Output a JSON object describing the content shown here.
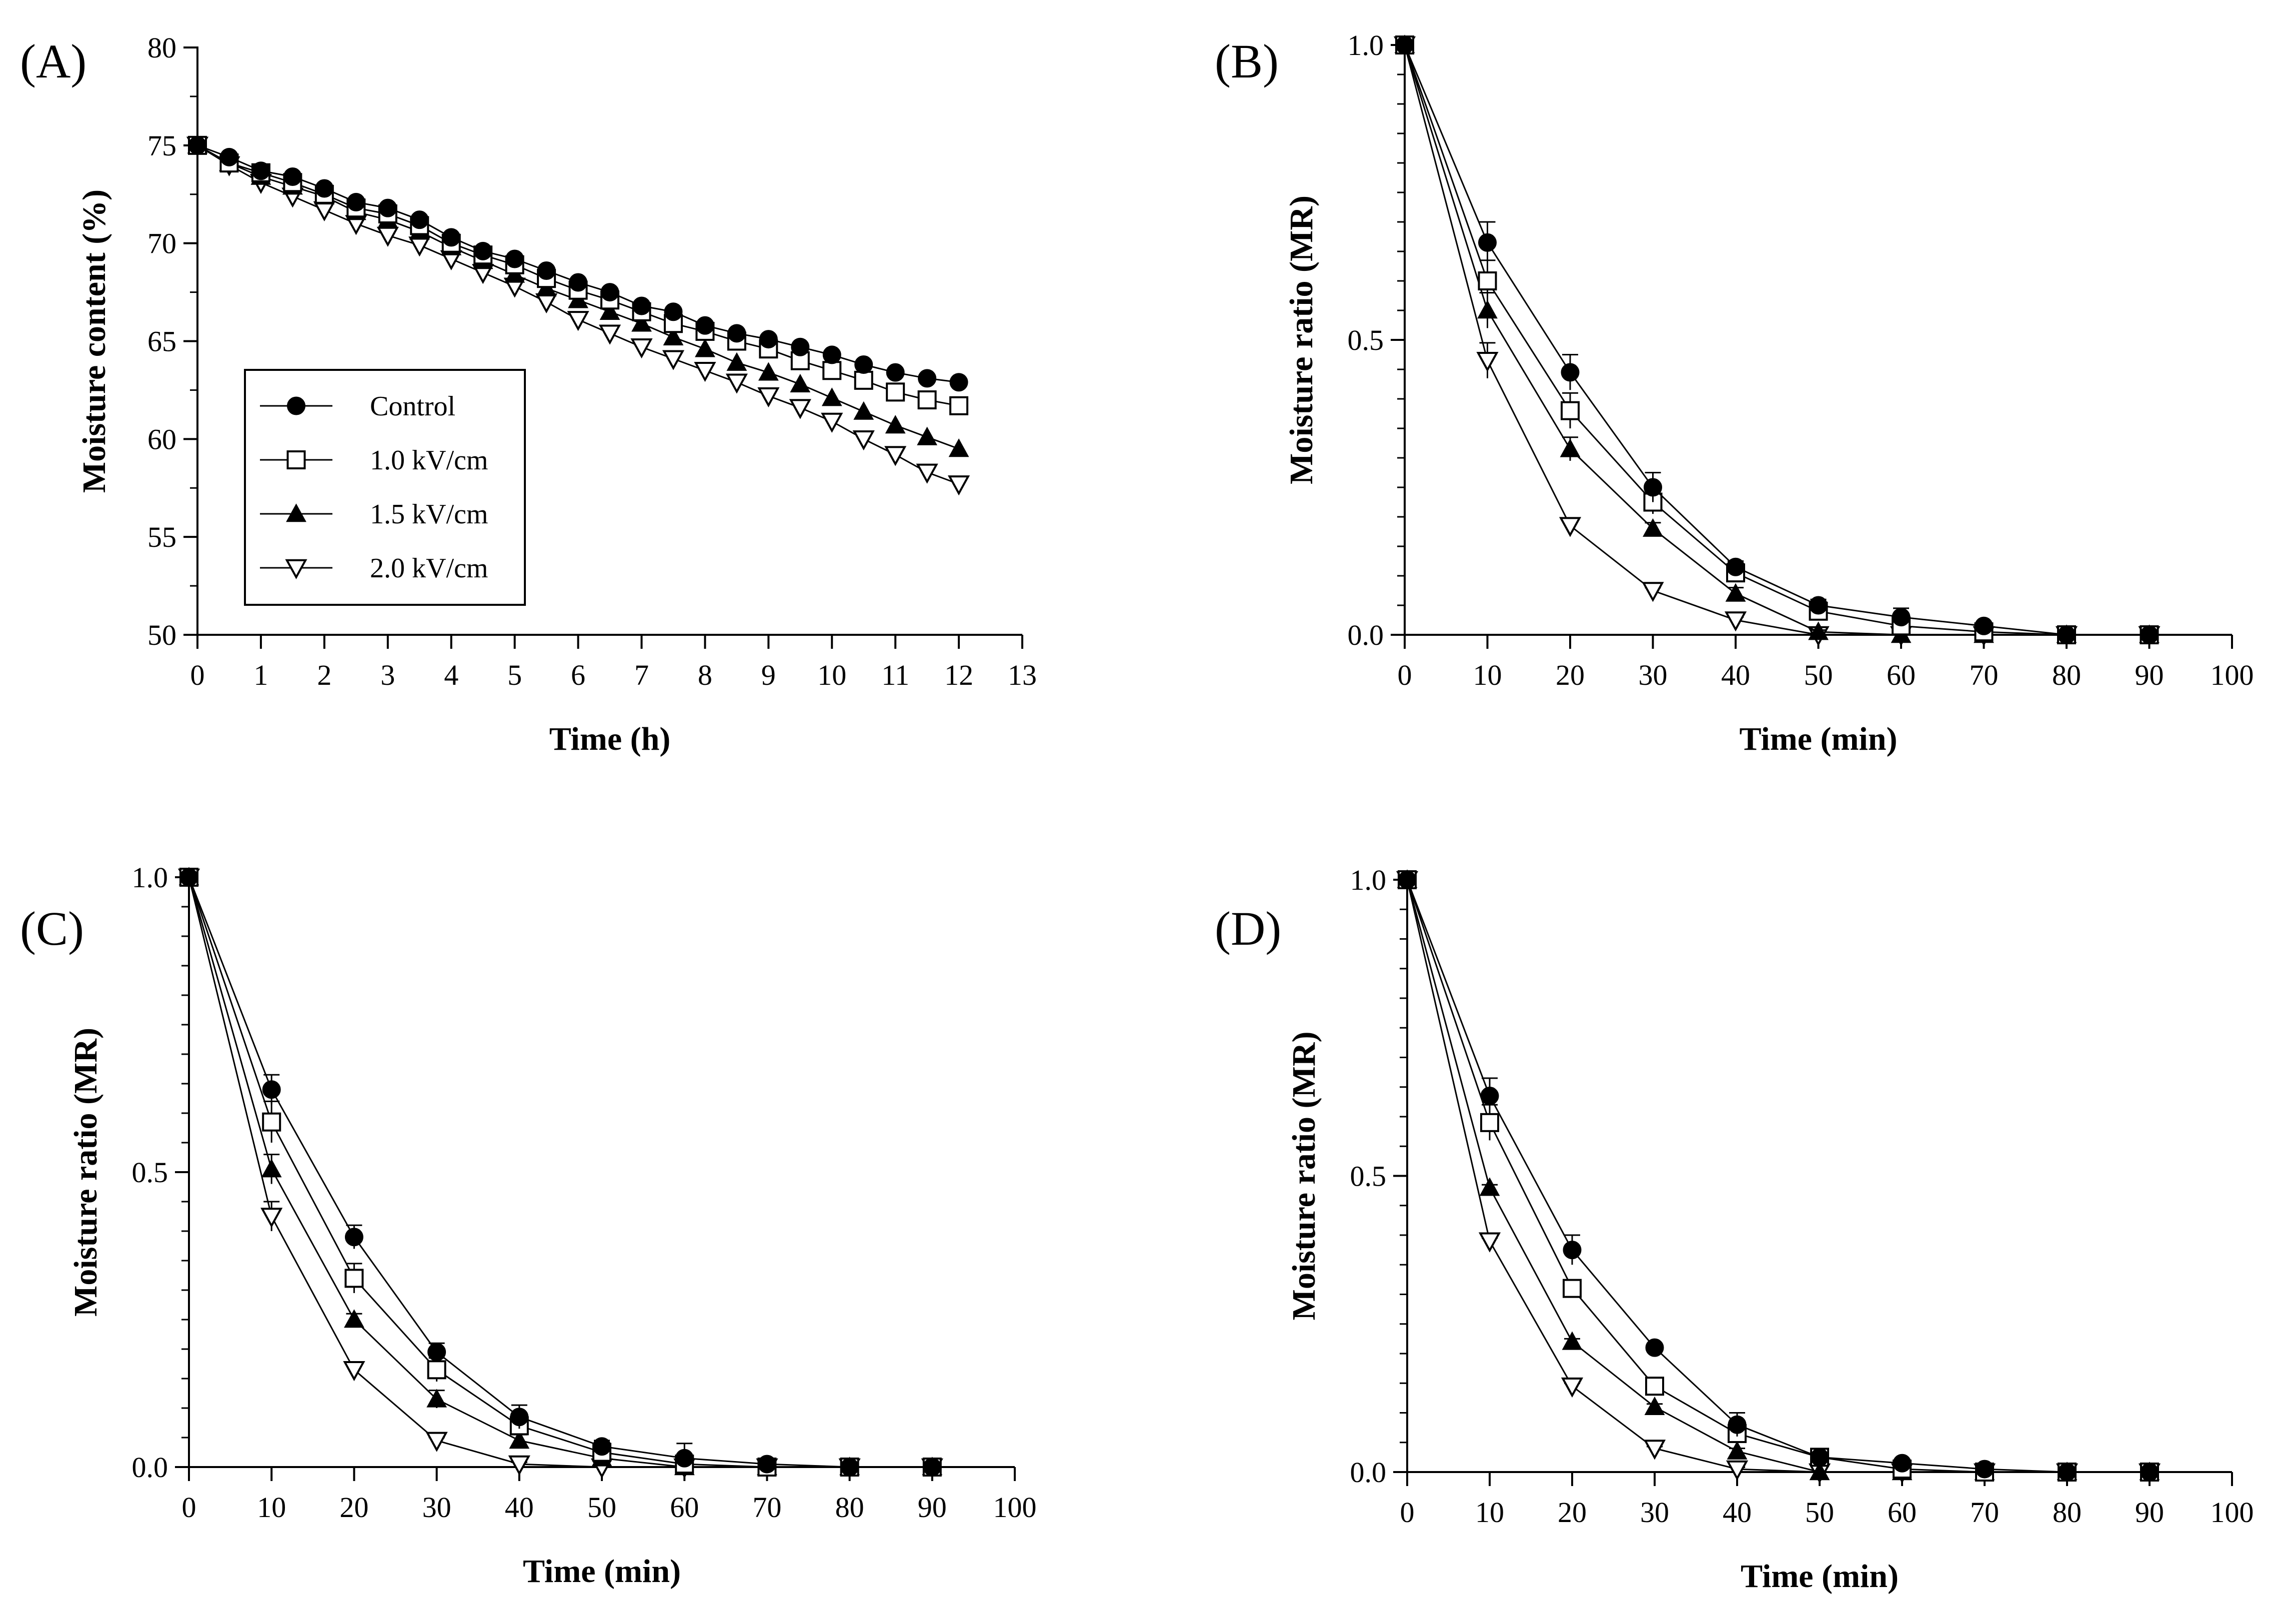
{
  "chart_data": [
    {
      "panel_label": "(A)",
      "type": "line",
      "xlabel": "Time (h)",
      "ylabel": "Moisture content (%)",
      "xlim": [
        0,
        13
      ],
      "ylim": [
        50,
        80
      ],
      "xticks": [
        0,
        1,
        2,
        3,
        4,
        5,
        6,
        7,
        8,
        9,
        10,
        11,
        12,
        13
      ],
      "yticks": [
        50,
        55,
        60,
        65,
        70,
        75,
        80
      ],
      "grid": false,
      "legend": "inside-lower-left",
      "x": [
        0,
        0.5,
        1,
        1.5,
        2,
        2.5,
        3,
        3.5,
        4,
        4.5,
        5,
        5.5,
        6,
        6.5,
        7,
        7.5,
        8,
        8.5,
        9,
        9.5,
        10,
        10.5,
        11,
        11.5,
        12
      ],
      "series": [
        {
          "name": "Control",
          "marker": "circle-filled",
          "values": [
            75,
            74.4,
            73.7,
            73.4,
            72.8,
            72.1,
            71.8,
            71.2,
            70.3,
            69.6,
            69.2,
            68.6,
            68.0,
            67.5,
            66.8,
            66.5,
            65.8,
            65.4,
            65.1,
            64.7,
            64.3,
            63.8,
            63.4,
            63.1,
            62.9
          ]
        },
        {
          "name": "1.0 kV/cm",
          "marker": "square-open",
          "values": [
            75,
            74.1,
            73.6,
            73.1,
            72.5,
            71.8,
            71.5,
            70.9,
            70.0,
            69.4,
            68.9,
            68.2,
            67.6,
            67.1,
            66.5,
            65.9,
            65.5,
            65.0,
            64.6,
            64.0,
            63.5,
            63.0,
            62.4,
            62.0,
            61.7
          ]
        },
        {
          "name": "1.5 kV/cm",
          "marker": "triangle-filled",
          "values": [
            75,
            74.1,
            73.4,
            72.9,
            72.4,
            71.6,
            71.2,
            70.6,
            69.8,
            69.1,
            68.4,
            67.7,
            67.1,
            66.5,
            65.9,
            65.2,
            64.6,
            63.9,
            63.4,
            62.8,
            62.1,
            61.4,
            60.7,
            60.1,
            59.5
          ]
        },
        {
          "name": "2.0 kV/cm",
          "marker": "triangle-down-open",
          "values": [
            75,
            74.0,
            73.1,
            72.4,
            71.7,
            71.0,
            70.4,
            69.9,
            69.2,
            68.5,
            67.8,
            67.0,
            66.1,
            65.4,
            64.7,
            64.1,
            63.5,
            62.9,
            62.2,
            61.6,
            60.9,
            60.0,
            59.2,
            58.3,
            57.7
          ]
        }
      ]
    },
    {
      "panel_label": "(B)",
      "type": "line",
      "xlabel": "Time (min)",
      "ylabel": "Moisture ratio (MR)",
      "xlim": [
        0,
        100
      ],
      "ylim": [
        0,
        1
      ],
      "xticks": [
        0,
        10,
        20,
        30,
        40,
        50,
        60,
        70,
        80,
        90,
        100
      ],
      "yticks": [
        0.0,
        0.5,
        1.0
      ],
      "ytick_labels": [
        "0.0",
        "0.5",
        "1.0"
      ],
      "grid": false,
      "x": [
        0,
        10,
        20,
        30,
        40,
        50,
        60,
        70,
        80,
        90
      ],
      "series": [
        {
          "name": "Control",
          "marker": "circle-filled",
          "values": [
            1.0,
            0.665,
            0.445,
            0.25,
            0.115,
            0.05,
            0.03,
            0.015,
            0.0,
            0.0
          ],
          "errors": [
            0,
            0.035,
            0.03,
            0.025,
            0.01,
            0.01,
            0.015,
            0.005,
            0,
            0
          ]
        },
        {
          "name": "1.0 kV/cm",
          "marker": "square-open",
          "values": [
            1.0,
            0.6,
            0.38,
            0.225,
            0.105,
            0.04,
            0.015,
            0.005,
            0.0,
            0.0
          ],
          "errors": [
            0,
            0.035,
            0.03,
            0.02,
            0.01,
            0.005,
            0.01,
            0.005,
            0,
            0
          ]
        },
        {
          "name": "1.5 kV/cm",
          "marker": "triangle-filled",
          "values": [
            1.0,
            0.55,
            0.315,
            0.18,
            0.07,
            0.005,
            0.0,
            0.0,
            0.0,
            0.0
          ],
          "errors": [
            0,
            0.03,
            0.02,
            0.01,
            0.01,
            0.003,
            0,
            0,
            0,
            0
          ]
        },
        {
          "name": "2.0 kV/cm",
          "marker": "triangle-down-open",
          "values": [
            1.0,
            0.465,
            0.185,
            0.075,
            0.025,
            0.0,
            0.0,
            0.0,
            0.0,
            0.0
          ],
          "errors": [
            0,
            0.03,
            0.01,
            0.005,
            0.005,
            0,
            0,
            0,
            0,
            0
          ]
        }
      ]
    },
    {
      "panel_label": "(C)",
      "type": "line",
      "xlabel": "Time (min)",
      "ylabel": "Moisture ratio (MR)",
      "xlim": [
        0,
        100
      ],
      "ylim": [
        0,
        1
      ],
      "xticks": [
        0,
        10,
        20,
        30,
        40,
        50,
        60,
        70,
        80,
        90,
        100
      ],
      "yticks": [
        0.0,
        0.5,
        1.0
      ],
      "ytick_labels": [
        "0.0",
        "0.5",
        "1.0"
      ],
      "grid": false,
      "x": [
        0,
        10,
        20,
        30,
        40,
        50,
        60,
        70,
        80,
        90
      ],
      "series": [
        {
          "name": "Control",
          "marker": "circle-filled",
          "values": [
            1.0,
            0.64,
            0.39,
            0.195,
            0.085,
            0.035,
            0.015,
            0.005,
            0.0,
            0.0
          ],
          "errors": [
            0,
            0.025,
            0.02,
            0.015,
            0.02,
            0.01,
            0.025,
            0.005,
            0,
            0
          ]
        },
        {
          "name": "1.0 kV/cm",
          "marker": "square-open",
          "values": [
            1.0,
            0.585,
            0.32,
            0.165,
            0.07,
            0.025,
            0.005,
            0.0,
            0.0,
            0.0
          ],
          "errors": [
            0,
            0.035,
            0.025,
            0.02,
            0.015,
            0.01,
            0.005,
            0,
            0,
            0
          ]
        },
        {
          "name": "1.5 kV/cm",
          "marker": "triangle-filled",
          "values": [
            1.0,
            0.505,
            0.25,
            0.115,
            0.045,
            0.015,
            0.0,
            0.0,
            0.0,
            0.0
          ],
          "errors": [
            0,
            0.025,
            0.01,
            0.015,
            0.01,
            0.005,
            0,
            0,
            0,
            0
          ]
        },
        {
          "name": "2.0 kV/cm",
          "marker": "triangle-down-open",
          "values": [
            1.0,
            0.425,
            0.165,
            0.045,
            0.005,
            0.0,
            0.0,
            0.0,
            0.0,
            0.0
          ],
          "errors": [
            0,
            0.025,
            0.01,
            0.005,
            0.003,
            0,
            0,
            0,
            0,
            0
          ]
        }
      ]
    },
    {
      "panel_label": "(D)",
      "type": "line",
      "xlabel": "Time (min)",
      "ylabel": "Moisture ratio (MR)",
      "xlim": [
        0,
        100
      ],
      "ylim": [
        0,
        1
      ],
      "xticks": [
        0,
        10,
        20,
        30,
        40,
        50,
        60,
        70,
        80,
        90,
        100
      ],
      "yticks": [
        0.0,
        0.5,
        1.0
      ],
      "ytick_labels": [
        "0.0",
        "0.5",
        "1.0"
      ],
      "grid": false,
      "x": [
        0,
        10,
        20,
        30,
        40,
        50,
        60,
        70,
        80,
        90
      ],
      "series": [
        {
          "name": "Control",
          "marker": "circle-filled",
          "values": [
            1.0,
            0.635,
            0.375,
            0.21,
            0.08,
            0.025,
            0.015,
            0.005,
            0.0,
            0.0
          ],
          "errors": [
            0,
            0.03,
            0.025,
            0.005,
            0.02,
            0.005,
            0.005,
            0.005,
            0,
            0
          ]
        },
        {
          "name": "1.0 kV/cm",
          "marker": "square-open",
          "values": [
            1.0,
            0.59,
            0.31,
            0.145,
            0.065,
            0.025,
            0.005,
            0.0,
            0.0,
            0.0
          ],
          "errors": [
            0,
            0.03,
            0.005,
            0.01,
            0.015,
            0.005,
            0.005,
            0,
            0,
            0
          ]
        },
        {
          "name": "1.5 kV/cm",
          "marker": "triangle-filled",
          "values": [
            1.0,
            0.48,
            0.22,
            0.11,
            0.035,
            0.0,
            0.0,
            0.0,
            0.0,
            0.0
          ],
          "errors": [
            0,
            0.005,
            0.005,
            0.005,
            0.005,
            0,
            0,
            0,
            0,
            0
          ]
        },
        {
          "name": "2.0 kV/cm",
          "marker": "triangle-down-open",
          "values": [
            1.0,
            0.39,
            0.145,
            0.04,
            0.005,
            0.0,
            0.0,
            0.0,
            0.0,
            0.0
          ],
          "errors": [
            0,
            0.005,
            0.005,
            0.003,
            0.003,
            0,
            0,
            0,
            0,
            0
          ]
        }
      ]
    }
  ]
}
